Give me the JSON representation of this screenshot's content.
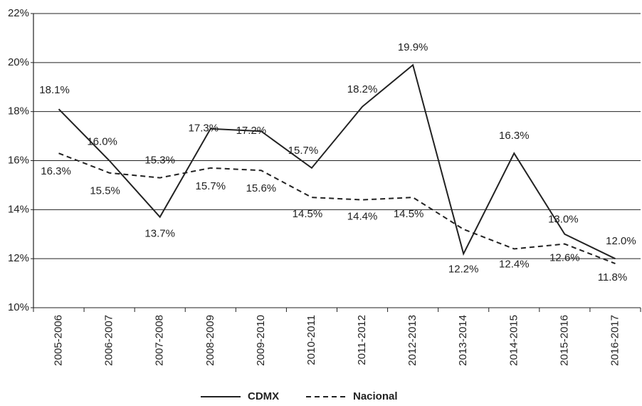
{
  "chart_data": {
    "type": "line",
    "categories": [
      "2005-2006",
      "2006-2007",
      "2007-2008",
      "2008-2009",
      "2009-2010",
      "2010-2011",
      "2011-2012",
      "2012-2013",
      "2013-2014",
      "2014-2015",
      "2015-2016",
      "2016-2017"
    ],
    "series": [
      {
        "name": "CDMX",
        "color": "#222222",
        "dash": "solid",
        "values": [
          18.1,
          16.0,
          13.7,
          17.3,
          17.2,
          15.7,
          18.2,
          19.9,
          12.2,
          16.3,
          13.0,
          12.0
        ],
        "value_labels": [
          "18.1%",
          "16.0%",
          "13.7%",
          "17.3%",
          "17.2%",
          "15.7%",
          "18.2%",
          "19.9%",
          "12.2%",
          "16.3%",
          "13.0%",
          "12.0%"
        ]
      },
      {
        "name": "Nacional",
        "color": "#222222",
        "dash": "dashed",
        "values": [
          16.3,
          15.5,
          15.3,
          15.7,
          15.6,
          14.5,
          14.4,
          14.5,
          13.2,
          12.4,
          12.6,
          11.8
        ],
        "value_labels": [
          "16.3%",
          "15.5%",
          "15.3%",
          "15.7%",
          "15.6%",
          "14.5%",
          "14.4%",
          "14.5%",
          null,
          "12.4%",
          "12.6%",
          "11.8%"
        ]
      }
    ],
    "ylim": [
      10,
      22
    ],
    "yticks": [
      {
        "value": 10,
        "label": "10%"
      },
      {
        "value": 12,
        "label": "12%"
      },
      {
        "value": 14,
        "label": "14%"
      },
      {
        "value": 16,
        "label": "16%"
      },
      {
        "value": 18,
        "label": "18%"
      },
      {
        "value": 20,
        "label": "20%"
      },
      {
        "value": 22,
        "label": "22%"
      }
    ],
    "grid": true,
    "legend": "bottom"
  }
}
